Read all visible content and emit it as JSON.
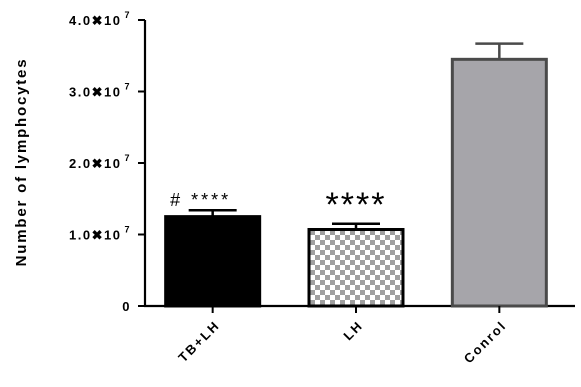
{
  "chart_data": {
    "type": "bar",
    "title": "",
    "xlabel": "",
    "ylabel": "Number of lymphocytes",
    "ylim": [
      0,
      40000000
    ],
    "yticks": [
      {
        "value": 0,
        "mantissa": "0",
        "exp": ""
      },
      {
        "value": 10000000,
        "mantissa": "1.0",
        "exp": "7"
      },
      {
        "value": 20000000,
        "mantissa": "2.0",
        "exp": "7"
      },
      {
        "value": 30000000,
        "mantissa": "3.0",
        "exp": "7"
      },
      {
        "value": 40000000,
        "mantissa": "4.0",
        "exp": "7"
      }
    ],
    "tick_multiplier_glyph": "✖10",
    "categories": [
      "TB+LH",
      "LH",
      "Conrol"
    ],
    "values": [
      12500000,
      10700000,
      34500000
    ],
    "errors": [
      900000,
      800000,
      2200000
    ],
    "fills": [
      "solid-black",
      "checkerboard",
      "solid-gray"
    ],
    "annotations": [
      "# ****",
      "****",
      ""
    ],
    "colors": {
      "bar_black": "#000000",
      "bar_gray": "#a6a5aa",
      "bar_gray_edge": "#4a4a4a",
      "checker_dark": "#a0a0a0",
      "checker_light": "#ffffff"
    },
    "grid": false,
    "legend": "none"
  }
}
